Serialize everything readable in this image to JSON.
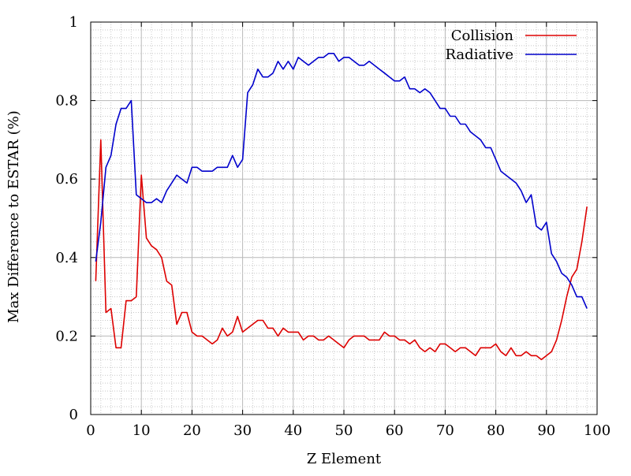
{
  "chart_data": {
    "type": "line",
    "title": "",
    "xlabel": "Z Element",
    "ylabel": "Max Difference to ESTAR (%)",
    "xlim": [
      0,
      100
    ],
    "ylim": [
      0,
      1
    ],
    "x_ticks": [
      "0",
      "10",
      "20",
      "30",
      "40",
      "50",
      "60",
      "70",
      "80",
      "90",
      "100"
    ],
    "y_ticks": [
      "0",
      "0.2",
      "0.4",
      "0.6",
      "0.8",
      "1"
    ],
    "grid": true,
    "legend_position": "top-right",
    "x": [
      1,
      2,
      3,
      4,
      5,
      6,
      7,
      8,
      9,
      10,
      11,
      12,
      13,
      14,
      15,
      16,
      17,
      18,
      19,
      20,
      21,
      22,
      23,
      24,
      25,
      26,
      27,
      28,
      29,
      30,
      31,
      32,
      33,
      34,
      35,
      36,
      37,
      38,
      39,
      40,
      41,
      42,
      43,
      44,
      45,
      46,
      47,
      48,
      49,
      50,
      51,
      52,
      53,
      54,
      55,
      56,
      57,
      58,
      59,
      60,
      61,
      62,
      63,
      64,
      65,
      66,
      67,
      68,
      69,
      70,
      71,
      72,
      73,
      74,
      75,
      76,
      77,
      78,
      79,
      80,
      81,
      82,
      83,
      84,
      85,
      86,
      87,
      88,
      89,
      90,
      91,
      92,
      93,
      94,
      95,
      96,
      97,
      98
    ],
    "series": [
      {
        "name": "Collision",
        "color": "#dd0000",
        "values": [
          0.34,
          0.7,
          0.26,
          0.27,
          0.17,
          0.17,
          0.29,
          0.29,
          0.3,
          0.61,
          0.45,
          0.43,
          0.42,
          0.4,
          0.34,
          0.33,
          0.23,
          0.26,
          0.26,
          0.21,
          0.2,
          0.2,
          0.19,
          0.18,
          0.19,
          0.22,
          0.2,
          0.21,
          0.25,
          0.21,
          0.22,
          0.23,
          0.24,
          0.24,
          0.22,
          0.22,
          0.2,
          0.22,
          0.21,
          0.21,
          0.21,
          0.19,
          0.2,
          0.2,
          0.19,
          0.19,
          0.2,
          0.19,
          0.18,
          0.17,
          0.19,
          0.2,
          0.2,
          0.2,
          0.19,
          0.19,
          0.19,
          0.21,
          0.2,
          0.2,
          0.19,
          0.19,
          0.18,
          0.19,
          0.17,
          0.16,
          0.17,
          0.16,
          0.18,
          0.18,
          0.17,
          0.16,
          0.17,
          0.17,
          0.16,
          0.15,
          0.17,
          0.17,
          0.17,
          0.18,
          0.16,
          0.15,
          0.17,
          0.15,
          0.15,
          0.16,
          0.15,
          0.15,
          0.14,
          0.15,
          0.16,
          0.19,
          0.24,
          0.3,
          0.35,
          0.37,
          0.44,
          0.53
        ]
      },
      {
        "name": "Radiative",
        "color": "#0000cc",
        "values": [
          0.39,
          0.49,
          0.63,
          0.66,
          0.74,
          0.78,
          0.78,
          0.8,
          0.56,
          0.55,
          0.54,
          0.54,
          0.55,
          0.54,
          0.57,
          0.59,
          0.61,
          0.6,
          0.59,
          0.63,
          0.63,
          0.62,
          0.62,
          0.62,
          0.63,
          0.63,
          0.63,
          0.66,
          0.63,
          0.65,
          0.82,
          0.84,
          0.88,
          0.86,
          0.86,
          0.87,
          0.9,
          0.88,
          0.9,
          0.88,
          0.91,
          0.9,
          0.89,
          0.9,
          0.91,
          0.91,
          0.92,
          0.92,
          0.9,
          0.91,
          0.91,
          0.9,
          0.89,
          0.89,
          0.9,
          0.89,
          0.88,
          0.87,
          0.86,
          0.85,
          0.85,
          0.86,
          0.83,
          0.83,
          0.82,
          0.83,
          0.82,
          0.8,
          0.78,
          0.78,
          0.76,
          0.76,
          0.74,
          0.74,
          0.72,
          0.71,
          0.7,
          0.68,
          0.68,
          0.65,
          0.62,
          0.61,
          0.6,
          0.59,
          0.57,
          0.54,
          0.56,
          0.48,
          0.47,
          0.49,
          0.41,
          0.39,
          0.36,
          0.35,
          0.33,
          0.3,
          0.3,
          0.27
        ]
      }
    ]
  }
}
